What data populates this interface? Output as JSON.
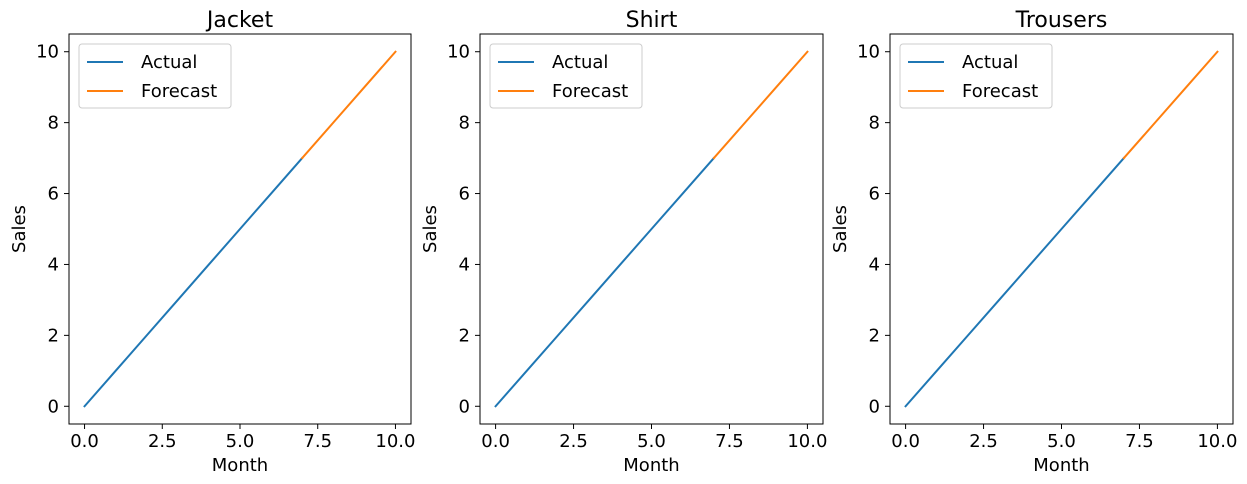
{
  "chart_data": [
    {
      "type": "line",
      "title": "Jacket",
      "xlabel": "Month",
      "ylabel": "Sales",
      "xlim": [
        -0.5,
        10.5
      ],
      "ylim": [
        -0.5,
        10.5
      ],
      "xticks": [
        0.0,
        2.5,
        5.0,
        7.5,
        10.0
      ],
      "xtick_labels": [
        "0.0",
        "2.5",
        "5.0",
        "7.5",
        "10.0"
      ],
      "yticks": [
        0,
        2,
        4,
        6,
        8,
        10
      ],
      "ytick_labels": [
        "0",
        "2",
        "4",
        "6",
        "8",
        "10"
      ],
      "grid": false,
      "legend": "upper-left",
      "series": [
        {
          "name": "Actual",
          "color": "#1f77b4",
          "x": [
            0,
            1,
            2,
            3,
            4,
            5,
            6,
            7
          ],
          "y": [
            0,
            1,
            2,
            3,
            4,
            5,
            6,
            7
          ]
        },
        {
          "name": "Forecast",
          "color": "#ff7f0e",
          "x": [
            7,
            8,
            9,
            10
          ],
          "y": [
            7,
            8,
            9,
            10
          ]
        }
      ]
    },
    {
      "type": "line",
      "title": "Shirt",
      "xlabel": "Month",
      "ylabel": "Sales",
      "xlim": [
        -0.5,
        10.5
      ],
      "ylim": [
        -0.5,
        10.5
      ],
      "xticks": [
        0.0,
        2.5,
        5.0,
        7.5,
        10.0
      ],
      "xtick_labels": [
        "0.0",
        "2.5",
        "5.0",
        "7.5",
        "10.0"
      ],
      "yticks": [
        0,
        2,
        4,
        6,
        8,
        10
      ],
      "ytick_labels": [
        "0",
        "2",
        "4",
        "6",
        "8",
        "10"
      ],
      "grid": false,
      "legend": "upper-left",
      "series": [
        {
          "name": "Actual",
          "color": "#1f77b4",
          "x": [
            0,
            1,
            2,
            3,
            4,
            5,
            6,
            7
          ],
          "y": [
            0,
            1,
            2,
            3,
            4,
            5,
            6,
            7
          ]
        },
        {
          "name": "Forecast",
          "color": "#ff7f0e",
          "x": [
            7,
            8,
            9,
            10
          ],
          "y": [
            7,
            8,
            9,
            10
          ]
        }
      ]
    },
    {
      "type": "line",
      "title": "Trousers",
      "xlabel": "Month",
      "ylabel": "Sales",
      "xlim": [
        -0.5,
        10.5
      ],
      "ylim": [
        -0.5,
        10.5
      ],
      "xticks": [
        0.0,
        2.5,
        5.0,
        7.5,
        10.0
      ],
      "xtick_labels": [
        "0.0",
        "2.5",
        "5.0",
        "7.5",
        "10.0"
      ],
      "yticks": [
        0,
        2,
        4,
        6,
        8,
        10
      ],
      "ytick_labels": [
        "0",
        "2",
        "4",
        "6",
        "8",
        "10"
      ],
      "grid": false,
      "legend": "upper-left",
      "series": [
        {
          "name": "Actual",
          "color": "#1f77b4",
          "x": [
            0,
            1,
            2,
            3,
            4,
            5,
            6,
            7
          ],
          "y": [
            0,
            1,
            2,
            3,
            4,
            5,
            6,
            7
          ]
        },
        {
          "name": "Forecast",
          "color": "#ff7f0e",
          "x": [
            7,
            8,
            9,
            10
          ],
          "y": [
            7,
            8,
            9,
            10
          ]
        }
      ]
    }
  ]
}
